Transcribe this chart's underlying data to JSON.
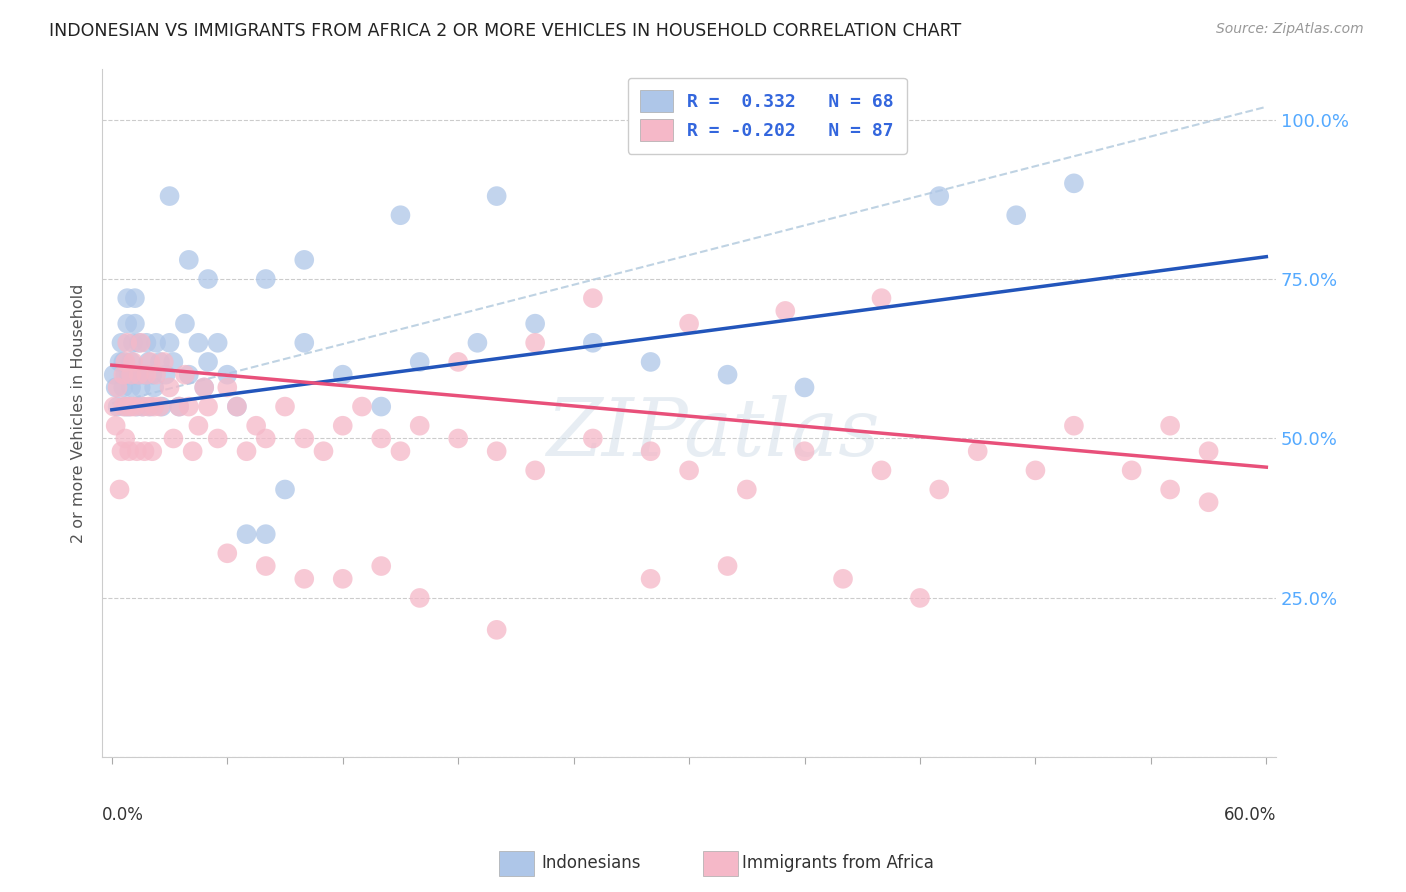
{
  "title": "INDONESIAN VS IMMIGRANTS FROM AFRICA 2 OR MORE VEHICLES IN HOUSEHOLD CORRELATION CHART",
  "source": "Source: ZipAtlas.com",
  "ylabel": "2 or more Vehicles in Household",
  "ytick_labels": [
    "",
    "25.0%",
    "50.0%",
    "75.0%",
    "100.0%"
  ],
  "ytick_values": [
    0.0,
    0.25,
    0.5,
    0.75,
    1.0
  ],
  "xlim": [
    -0.005,
    0.605
  ],
  "ylim": [
    0.0,
    1.08
  ],
  "legend_label1": "Indonesians",
  "legend_label2": "Immigrants from Africa",
  "R1": 0.332,
  "N1": 68,
  "R2": -0.202,
  "N2": 87,
  "color_blue": "#aec6e8",
  "color_pink": "#f5b8c8",
  "line_color_blue": "#2255bb",
  "line_color_pink": "#e8507a",
  "line_color_dashed": "#b0c8dc",
  "watermark": "ZIPatlas",
  "blue_line_x": [
    0.0,
    0.6
  ],
  "blue_line_y": [
    0.545,
    0.785
  ],
  "pink_line_x": [
    0.0,
    0.6
  ],
  "pink_line_y": [
    0.615,
    0.455
  ],
  "dash_line_x": [
    0.0,
    0.6
  ],
  "dash_line_y": [
    0.555,
    1.02
  ],
  "indonesian_x": [
    0.001,
    0.002,
    0.003,
    0.004,
    0.005,
    0.006,
    0.006,
    0.007,
    0.007,
    0.008,
    0.008,
    0.009,
    0.009,
    0.01,
    0.01,
    0.011,
    0.011,
    0.012,
    0.012,
    0.013,
    0.014,
    0.014,
    0.015,
    0.016,
    0.017,
    0.018,
    0.019,
    0.02,
    0.021,
    0.022,
    0.023,
    0.025,
    0.026,
    0.028,
    0.03,
    0.032,
    0.035,
    0.038,
    0.04,
    0.045,
    0.048,
    0.05,
    0.055,
    0.06,
    0.065,
    0.07,
    0.08,
    0.09,
    0.1,
    0.12,
    0.14,
    0.16,
    0.19,
    0.22,
    0.25,
    0.28,
    0.32,
    0.36,
    0.15,
    0.2,
    0.1,
    0.08,
    0.05,
    0.04,
    0.43,
    0.47,
    0.5,
    0.03
  ],
  "indonesian_y": [
    0.6,
    0.58,
    0.55,
    0.62,
    0.65,
    0.58,
    0.62,
    0.55,
    0.6,
    0.72,
    0.68,
    0.6,
    0.55,
    0.62,
    0.58,
    0.65,
    0.6,
    0.72,
    0.68,
    0.55,
    0.6,
    0.65,
    0.58,
    0.55,
    0.6,
    0.65,
    0.62,
    0.55,
    0.6,
    0.58,
    0.65,
    0.62,
    0.55,
    0.6,
    0.65,
    0.62,
    0.55,
    0.68,
    0.6,
    0.65,
    0.58,
    0.62,
    0.65,
    0.6,
    0.55,
    0.35,
    0.35,
    0.42,
    0.65,
    0.6,
    0.55,
    0.62,
    0.65,
    0.68,
    0.65,
    0.62,
    0.6,
    0.58,
    0.85,
    0.88,
    0.78,
    0.75,
    0.75,
    0.78,
    0.88,
    0.85,
    0.9,
    0.88
  ],
  "africa_x": [
    0.001,
    0.002,
    0.003,
    0.004,
    0.005,
    0.006,
    0.006,
    0.007,
    0.007,
    0.008,
    0.008,
    0.009,
    0.01,
    0.01,
    0.011,
    0.012,
    0.013,
    0.014,
    0.015,
    0.016,
    0.017,
    0.018,
    0.019,
    0.02,
    0.021,
    0.022,
    0.023,
    0.025,
    0.027,
    0.03,
    0.032,
    0.035,
    0.038,
    0.04,
    0.042,
    0.045,
    0.048,
    0.05,
    0.055,
    0.06,
    0.065,
    0.07,
    0.075,
    0.08,
    0.09,
    0.1,
    0.11,
    0.12,
    0.13,
    0.14,
    0.15,
    0.16,
    0.18,
    0.2,
    0.22,
    0.25,
    0.28,
    0.3,
    0.33,
    0.36,
    0.4,
    0.43,
    0.45,
    0.48,
    0.5,
    0.53,
    0.55,
    0.57,
    0.25,
    0.3,
    0.35,
    0.4,
    0.22,
    0.18,
    0.28,
    0.32,
    0.38,
    0.42,
    0.12,
    0.14,
    0.16,
    0.1,
    0.08,
    0.06,
    0.55,
    0.57,
    0.2
  ],
  "africa_y": [
    0.55,
    0.52,
    0.58,
    0.42,
    0.48,
    0.6,
    0.55,
    0.62,
    0.5,
    0.65,
    0.55,
    0.48,
    0.6,
    0.55,
    0.62,
    0.55,
    0.48,
    0.6,
    0.65,
    0.55,
    0.48,
    0.6,
    0.55,
    0.62,
    0.48,
    0.55,
    0.6,
    0.55,
    0.62,
    0.58,
    0.5,
    0.55,
    0.6,
    0.55,
    0.48,
    0.52,
    0.58,
    0.55,
    0.5,
    0.58,
    0.55,
    0.48,
    0.52,
    0.5,
    0.55,
    0.5,
    0.48,
    0.52,
    0.55,
    0.5,
    0.48,
    0.52,
    0.5,
    0.48,
    0.45,
    0.5,
    0.48,
    0.45,
    0.42,
    0.48,
    0.45,
    0.42,
    0.48,
    0.45,
    0.52,
    0.45,
    0.42,
    0.4,
    0.72,
    0.68,
    0.7,
    0.72,
    0.65,
    0.62,
    0.28,
    0.3,
    0.28,
    0.25,
    0.28,
    0.3,
    0.25,
    0.28,
    0.3,
    0.32,
    0.52,
    0.48,
    0.2
  ]
}
